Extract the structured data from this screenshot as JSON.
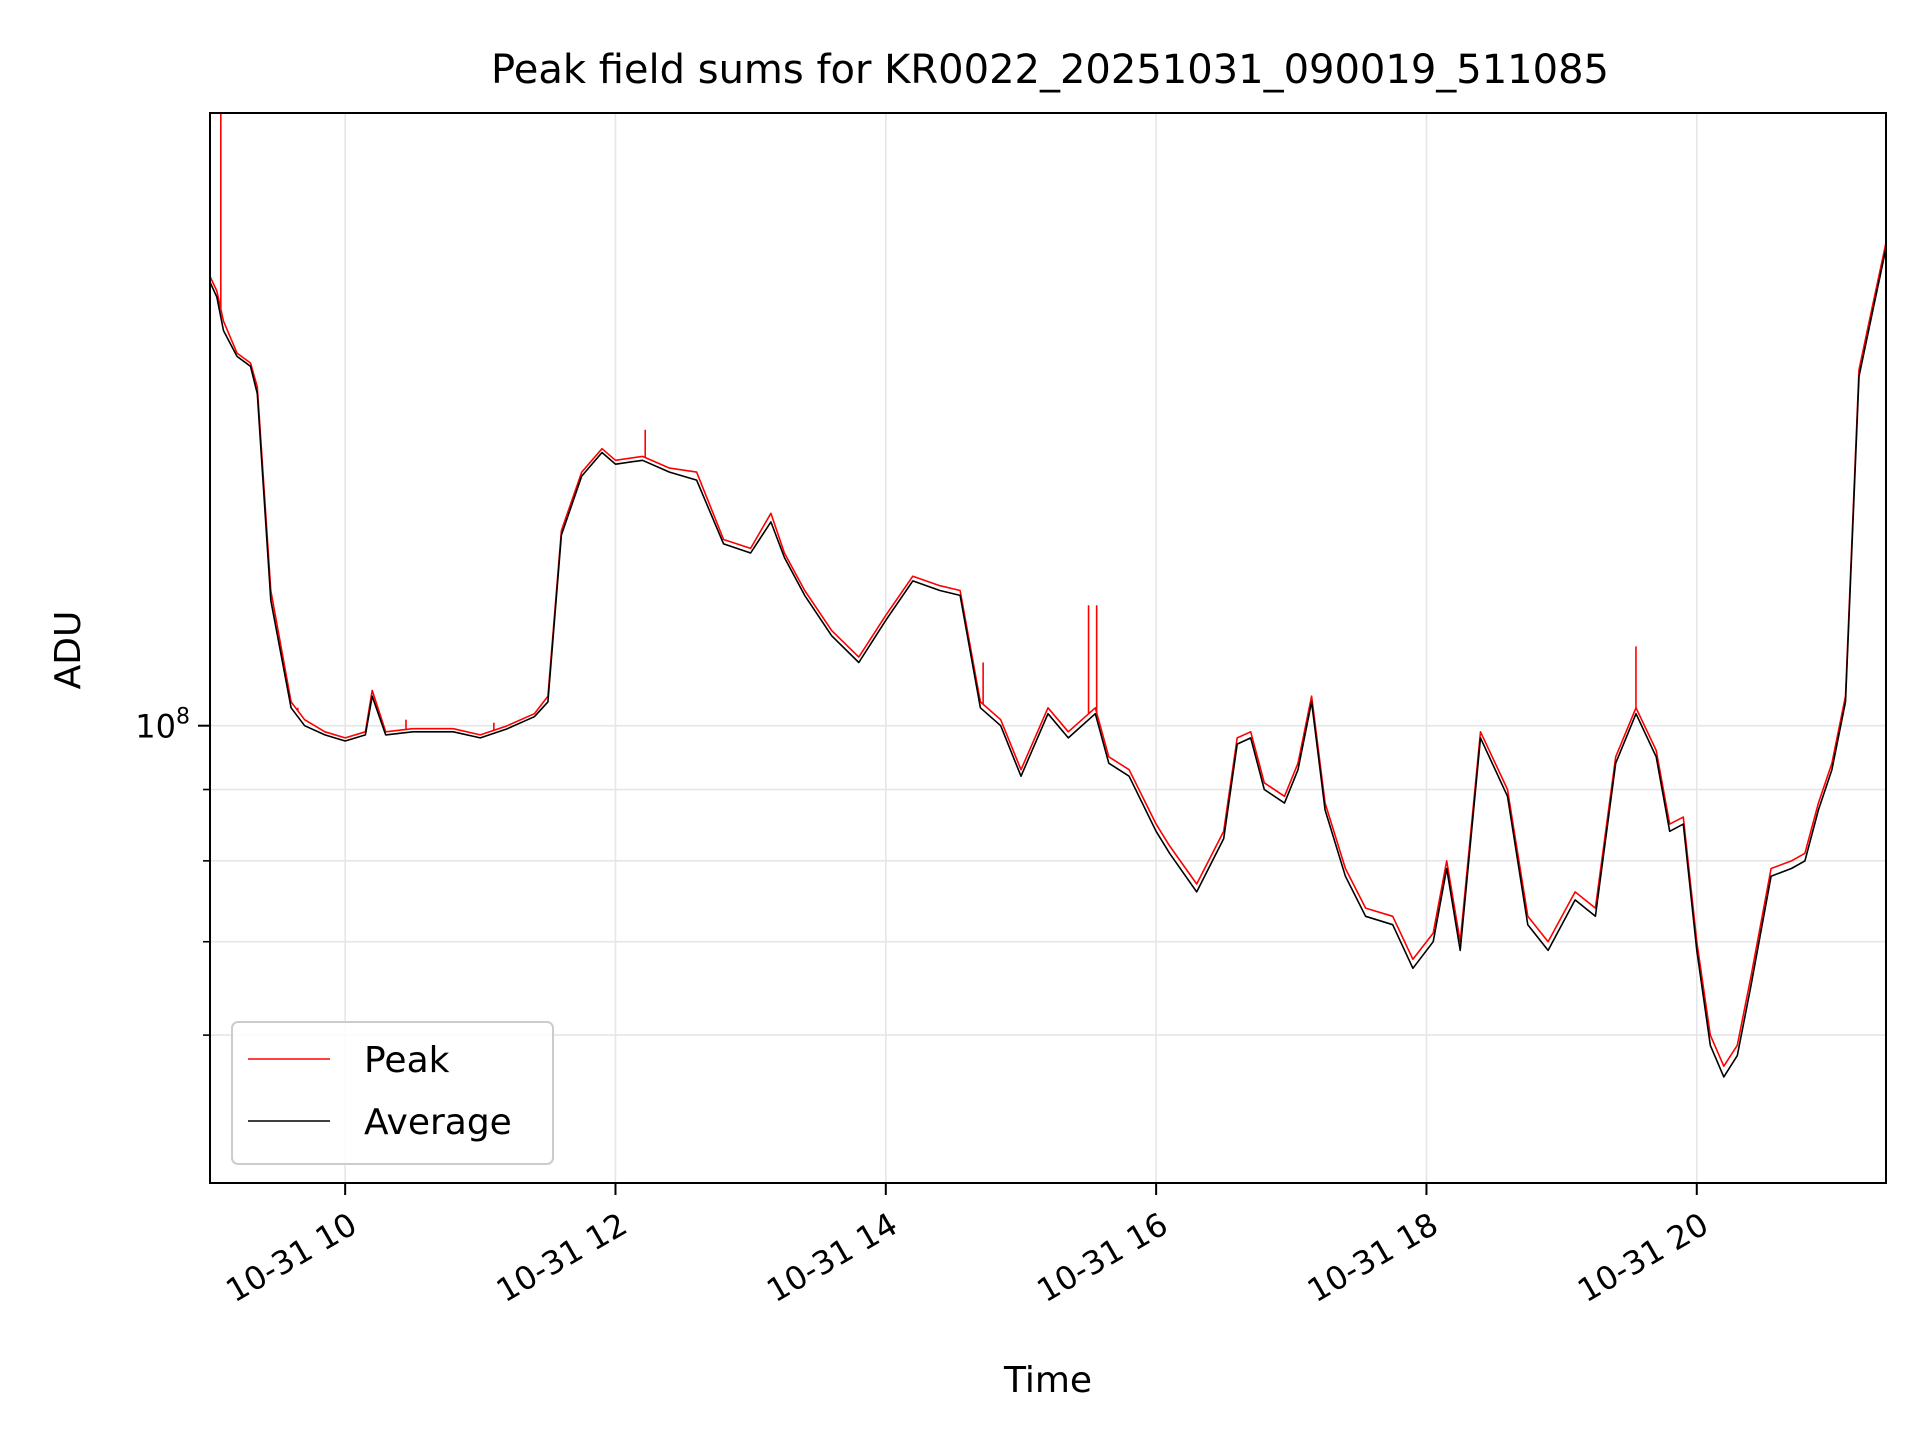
{
  "chart_data": {
    "type": "line",
    "title": "Peak field sums for KR0022_20251031_090019_511085",
    "xlabel": "Time",
    "ylabel": "ADU",
    "y_scale": "log",
    "ylim": [
      47000000,
      275000000
    ],
    "xlim_hours": [
      9.0,
      21.4
    ],
    "x_ticks": [
      {
        "h": 10,
        "label": "10-31 10"
      },
      {
        "h": 12,
        "label": "10-31 12"
      },
      {
        "h": 14,
        "label": "10-31 14"
      },
      {
        "h": 16,
        "label": "10-31 16"
      },
      {
        "h": 18,
        "label": "10-31 18"
      },
      {
        "h": 20,
        "label": "10-31 20"
      }
    ],
    "y_major_ticks": [
      {
        "value": 100000000,
        "base": "10",
        "exp": "8"
      }
    ],
    "y_minor_ticks": [
      60000000,
      70000000,
      80000000,
      90000000
    ],
    "grid": true,
    "legend_position": "lower-left",
    "colors": {
      "peak": "#ff0000",
      "average": "#000000",
      "grid": "#e6e6e6"
    },
    "series": [
      {
        "name": "Peak",
        "color": "#ff0000",
        "x": [
          9.0,
          9.05,
          9.1,
          9.2,
          9.3,
          9.35,
          9.45,
          9.6,
          9.7,
          9.85,
          10.0,
          10.15,
          10.2,
          10.3,
          10.5,
          10.8,
          11.0,
          11.2,
          11.4,
          11.5,
          11.6,
          11.75,
          11.9,
          12.0,
          12.2,
          12.4,
          12.6,
          12.8,
          13.0,
          13.15,
          13.25,
          13.4,
          13.6,
          13.8,
          14.0,
          14.2,
          14.4,
          14.55,
          14.7,
          14.85,
          15.0,
          15.2,
          15.35,
          15.55,
          15.65,
          15.8,
          16.0,
          16.1,
          16.3,
          16.5,
          16.6,
          16.7,
          16.8,
          16.95,
          17.05,
          17.15,
          17.25,
          17.4,
          17.55,
          17.75,
          17.9,
          18.05,
          18.15,
          18.25,
          18.4,
          18.6,
          18.75,
          18.9,
          19.1,
          19.25,
          19.4,
          19.55,
          19.7,
          19.8,
          19.9,
          20.0,
          20.1,
          20.2,
          20.3,
          20.4,
          20.55,
          20.7,
          20.8,
          20.9,
          21.0,
          21.1,
          21.2,
          21.3,
          21.4
        ],
        "values": [
          210000000,
          205000000,
          195000000,
          185000000,
          182000000,
          175000000,
          125000000,
          104000000,
          101000000,
          99000000,
          98000000,
          99000000,
          106000000,
          99000000,
          99500000,
          99500000,
          98500000,
          100000000,
          102000000,
          105000000,
          138000000,
          152000000,
          158000000,
          155000000,
          156000000,
          153000000,
          152000000,
          136000000,
          134000000,
          142000000,
          133000000,
          125000000,
          117000000,
          112000000,
          120000000,
          128000000,
          126000000,
          125000000,
          104000000,
          101000000,
          93000000,
          103000000,
          99000000,
          103000000,
          95000000,
          93000000,
          85000000,
          82000000,
          77000000,
          84000000,
          98000000,
          99000000,
          91000000,
          89000000,
          94000000,
          105000000,
          88000000,
          79000000,
          74000000,
          73000000,
          68000000,
          71000000,
          80000000,
          70000000,
          99000000,
          90000000,
          73000000,
          70000000,
          76000000,
          74000000,
          95000000,
          103000000,
          96000000,
          85000000,
          86000000,
          70000000,
          60000000,
          57000000,
          59000000,
          66000000,
          79000000,
          80000000,
          81000000,
          88000000,
          94000000,
          105000000,
          180000000,
          200000000,
          222000000
        ],
        "spikes": [
          {
            "x": 9.08,
            "value": 275000000
          },
          {
            "x": 9.65,
            "value": 103000000
          },
          {
            "x": 10.45,
            "value": 101000000
          },
          {
            "x": 11.1,
            "value": 100500000
          },
          {
            "x": 12.22,
            "value": 163000000
          },
          {
            "x": 14.72,
            "value": 111000000
          },
          {
            "x": 15.5,
            "value": 122000000
          },
          {
            "x": 15.56,
            "value": 122000000
          },
          {
            "x": 19.55,
            "value": 114000000
          }
        ]
      },
      {
        "name": "Average",
        "color": "#000000",
        "x": [
          9.0,
          9.05,
          9.1,
          9.2,
          9.3,
          9.35,
          9.45,
          9.6,
          9.7,
          9.85,
          10.0,
          10.15,
          10.2,
          10.3,
          10.5,
          10.8,
          11.0,
          11.2,
          11.4,
          11.5,
          11.6,
          11.75,
          11.9,
          12.0,
          12.2,
          12.4,
          12.6,
          12.8,
          13.0,
          13.15,
          13.25,
          13.4,
          13.6,
          13.8,
          14.0,
          14.2,
          14.4,
          14.55,
          14.7,
          14.85,
          15.0,
          15.2,
          15.35,
          15.55,
          15.65,
          15.8,
          16.0,
          16.1,
          16.3,
          16.5,
          16.6,
          16.7,
          16.8,
          16.95,
          17.05,
          17.15,
          17.25,
          17.4,
          17.55,
          17.75,
          17.9,
          18.05,
          18.15,
          18.25,
          18.4,
          18.6,
          18.75,
          18.9,
          19.1,
          19.25,
          19.4,
          19.55,
          19.7,
          19.8,
          19.9,
          20.0,
          20.1,
          20.2,
          20.3,
          20.4,
          20.55,
          20.7,
          20.8,
          20.9,
          21.0,
          21.1,
          21.2,
          21.3,
          21.4
        ],
        "values": [
          208000000,
          203000000,
          192000000,
          184000000,
          181000000,
          173000000,
          123000000,
          103000000,
          100000000,
          98500000,
          97500000,
          98500000,
          105000000,
          98500000,
          99000000,
          99000000,
          98000000,
          99500000,
          101500000,
          104000000,
          137000000,
          151000000,
          157000000,
          154000000,
          155000000,
          152000000,
          150000000,
          135000000,
          133000000,
          140000000,
          132000000,
          124000000,
          116000000,
          111000000,
          119000000,
          127000000,
          125000000,
          124000000,
          103000000,
          100000000,
          92000000,
          102000000,
          98000000,
          102000000,
          94000000,
          92000000,
          84000000,
          81000000,
          76000000,
          83000000,
          97000000,
          98000000,
          90000000,
          88000000,
          93000000,
          104000000,
          87000000,
          78000000,
          73000000,
          72000000,
          67000000,
          70000000,
          79000000,
          69000000,
          98000000,
          89000000,
          72000000,
          69000000,
          75000000,
          73000000,
          94000000,
          102000000,
          95000000,
          84000000,
          85000000,
          69000000,
          59000000,
          56000000,
          58000000,
          65000000,
          78000000,
          79000000,
          80000000,
          87000000,
          93000000,
          104000000,
          178000000,
          198000000,
          220000000
        ]
      }
    ]
  }
}
